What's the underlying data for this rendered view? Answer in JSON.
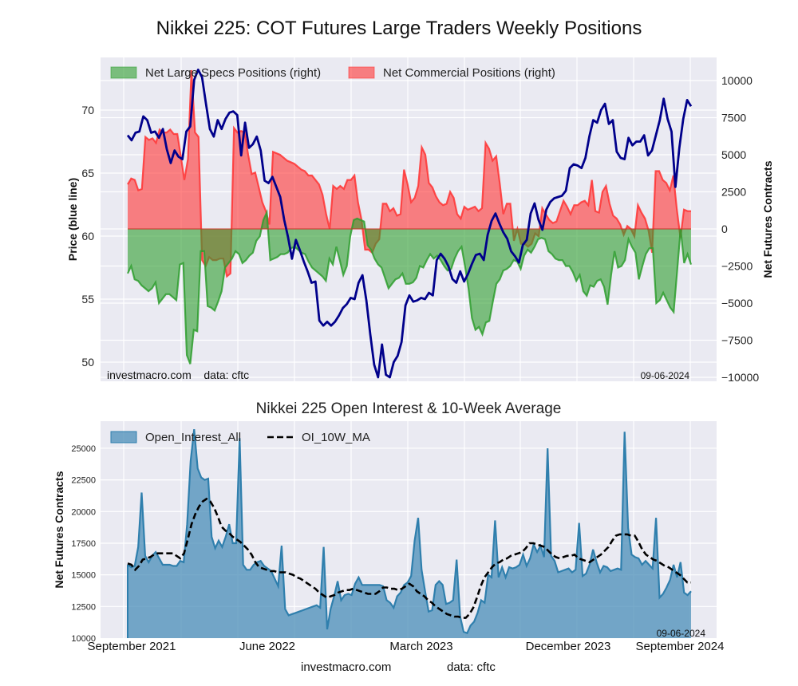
{
  "figure": {
    "title": "Nikkei 225: COT Futures Large Traders Weekly Positions",
    "footer_site": "investmacro.com",
    "footer_data": "data: cftc"
  },
  "colors": {
    "price_line": "#00008b",
    "specs_fill": "#2e9e2e",
    "commercial_fill": "#ff3333",
    "oi_fill": "#4a8db8",
    "oi_line": "#2f7fad",
    "ma_line": "#000000",
    "plot_bg": "#eaeaf2"
  },
  "chart_data": [
    {
      "type": "area",
      "title": "Nikkei 225: COT Futures Large Traders Weekly Positions",
      "ylabel_left": "Price (blue line)",
      "ylabel_right": "Net Futures Contracts",
      "ylim_left": [
        49,
        73.5
      ],
      "ylim_right": [
        -10000,
        11000
      ],
      "yticks_left": [
        "50",
        "55",
        "60",
        "65",
        "70"
      ],
      "yticks_right": [
        "10000",
        "7500",
        "5000",
        "2500",
        "0",
        "−2500",
        "−5000",
        "−7500",
        "−10000"
      ],
      "legend": [
        "Net Large Specs Positions (right)",
        "Net Commercial Positions (right)"
      ],
      "legend_position": "top-left",
      "watermark_left": "investmacro.com    data: cftc",
      "watermark_right": "09-06-2024",
      "grid": true,
      "x_start": "2021-08",
      "x_end": "2024-09-03",
      "series": [
        {
          "name": "Price",
          "axis": "left",
          "style": "line",
          "values": [
            68.0,
            67.6,
            68.2,
            68.3,
            69.5,
            69.2,
            68.2,
            68.3,
            67.8,
            68.5,
            66.9,
            65.8,
            66.8,
            66.3,
            66.1,
            68.3,
            68.7,
            72.4,
            73.2,
            72.6,
            70.5,
            68.5,
            67.9,
            69.2,
            68.5,
            69.3,
            69.8,
            69.9,
            69.6,
            66.4,
            69.0,
            67.0,
            67.3,
            67.9,
            66.8,
            64.4,
            64.2,
            64.7,
            63.9,
            63.1,
            61.3,
            59.9,
            58.2,
            59.7,
            58.9,
            58.0,
            57.2,
            56.3,
            56.4,
            53.3,
            52.9,
            53.2,
            52.9,
            53.2,
            53.7,
            54.3,
            54.6,
            55.1,
            55.0,
            56.3,
            56.9,
            54.9,
            52.2,
            49.8,
            48.8,
            51.4,
            49.0,
            48.8,
            50.0,
            50.5,
            51.6,
            54.5,
            55.3,
            54.8,
            54.9,
            55.1,
            55.0,
            55.5,
            55.3,
            58.1,
            58.6,
            58.2,
            57.6,
            56.6,
            56.3,
            57.2,
            56.4,
            57.0,
            57.8,
            58.5,
            58.6,
            58.1,
            60.1,
            61.2,
            61.8,
            61.0,
            60.3,
            59.8,
            58.8,
            58.4,
            57.9,
            59.3,
            59.7,
            61.8,
            62.6,
            61.3,
            60.5,
            62.1,
            62.7,
            63.0,
            63.1,
            63.2,
            63.6,
            65.4,
            65.7,
            65.6,
            65.4,
            66.2,
            67.9,
            69.2,
            69.0,
            70.0,
            70.5,
            68.9,
            69.2,
            66.7,
            66.2,
            66.1,
            67.8,
            67.2,
            67.5,
            67.5,
            68.0,
            66.4,
            66.8,
            68.0,
            69.2,
            70.9,
            69.3,
            68.3,
            63.9,
            67.0,
            69.3,
            70.8,
            70.3
          ]
        },
        {
          "name": "Net Large Specs Positions (right)",
          "axis": "right",
          "style": "area",
          "values": [
            -3000,
            -2500,
            -3400,
            -3500,
            -3800,
            -4000,
            -4200,
            -4000,
            -3600,
            -5000,
            -4700,
            -4400,
            -4400,
            -4600,
            -4800,
            -2400,
            -2300,
            -8500,
            -9100,
            -6800,
            -6900,
            -1500,
            -1500,
            -5200,
            -5300,
            -5500,
            -4900,
            -4200,
            -2600,
            -2300,
            -2000,
            -1500,
            -1700,
            -2300,
            -2100,
            -1800,
            -1600,
            -800,
            -500,
            600,
            1100,
            -2100,
            -2000,
            -1900,
            -1700,
            -1700,
            -1600,
            -1300,
            -1200,
            -1400,
            -1600,
            -1700,
            -2200,
            -2600,
            -2800,
            -3000,
            -3200,
            -3500,
            -2000,
            -2400,
            -1200,
            -2100,
            -3100,
            -2500,
            -500,
            600,
            700,
            600,
            500,
            -1100,
            -1400,
            -2000,
            -2400,
            -2600,
            -3300,
            -4000,
            -3700,
            -3400,
            -3300,
            -3000,
            -3700,
            -3700,
            -3600,
            -3300,
            -2500,
            -2600,
            -2100,
            -1700,
            -2000,
            -1800,
            -2100,
            -2500,
            -2800,
            -2700,
            -2000,
            -1500,
            -1200,
            -2500,
            -4000,
            -6000,
            -6800,
            -6600,
            -7100,
            -6300,
            -6200,
            -4900,
            -3700,
            -3400,
            -2800,
            -2700,
            -2500,
            -2100,
            -2200,
            -2700,
            -1800,
            -1400,
            -1600,
            -1200,
            -700,
            -600,
            -700,
            -1500,
            -1700,
            -2000,
            -2100,
            -2100,
            -2500,
            -2500,
            -2900,
            -3500,
            -3100,
            -4200,
            -4500,
            -3800,
            -3900,
            -3500,
            -3400,
            -3900,
            -5100,
            -3100,
            -1500,
            -2600,
            -2500,
            -2100,
            -700,
            -1200,
            -1600,
            -3400,
            -2500,
            -1700,
            -1300,
            -1300,
            -5000,
            -4800,
            -4300,
            -4800,
            -5300,
            -5600,
            -2800,
            0,
            -2300,
            -1700,
            -2400
          ]
        },
        {
          "name": "Net Commercial Positions (right)",
          "axis": "right",
          "style": "area",
          "values": [
            3000,
            3400,
            3300,
            2600,
            2700,
            6200,
            6000,
            6100,
            5800,
            6700,
            6500,
            6500,
            6700,
            6400,
            6400,
            4900,
            3300,
            4700,
            10700,
            6500,
            6200,
            -2100,
            -2500,
            -1900,
            -2100,
            -2100,
            -2000,
            -2000,
            -3200,
            -3000,
            6800,
            6500,
            6600,
            6500,
            5000,
            3700,
            3800,
            2800,
            1800,
            1200,
            300,
            5200,
            5100,
            5000,
            4800,
            4600,
            4500,
            4400,
            4200,
            4000,
            3900,
            3600,
            3600,
            3300,
            3000,
            2300,
            1000,
            0,
            2900,
            2700,
            2900,
            2700,
            3300,
            3300,
            3600,
            1800,
            600,
            -1400,
            -1400,
            -1600,
            -1000,
            -700,
            1700,
            1700,
            1200,
            1400,
            900,
            1000,
            4000,
            3000,
            1800,
            2100,
            2900,
            5500,
            5000,
            3100,
            2800,
            2200,
            1800,
            1600,
            1700,
            2500,
            2100,
            1000,
            700,
            1500,
            1300,
            1400,
            1500,
            1200,
            1400,
            5800,
            5400,
            4600,
            4900,
            3100,
            1000,
            1700,
            1700,
            -800,
            0,
            -1000,
            -1000,
            -1200,
            -1000,
            -300,
            -500,
            1400,
            1000,
            600,
            400,
            500,
            1200,
            1900,
            1500,
            1000,
            1600,
            1600,
            1800,
            1900,
            1600,
            3300,
            1200,
            1100,
            2500,
            2900,
            1700,
            900,
            700,
            300,
            -400,
            200,
            0,
            -500,
            1600,
            1100,
            700,
            -100,
            -1600,
            3900,
            3900,
            3300,
            3100,
            2600,
            3600,
            1300,
            -600,
            1300,
            1200,
            1200
          ]
        }
      ],
      "xticks": [
        "September 2021",
        "June 2022",
        "March 2023",
        "December 2023",
        "September 2024"
      ]
    },
    {
      "type": "area",
      "title": "Nikkei 225 Open Interest & 10-Week Average",
      "ylabel": "Net Futures Contracts",
      "ylim": [
        10000,
        27000
      ],
      "yticks": [
        "25000",
        "22500",
        "20000",
        "17500",
        "15000",
        "12500",
        "10000"
      ],
      "xticks": [
        "September 2021",
        "June 2022",
        "March 2023",
        "December 2023",
        "September 2024"
      ],
      "legend": [
        "Open_Interest_All",
        "OI_10W_MA"
      ],
      "legend_position": "top-left",
      "watermark_right": "09-06-2024",
      "grid": true,
      "series": [
        {
          "name": "Open_Interest_All",
          "style": "area",
          "values": [
            15800,
            15600,
            15700,
            17200,
            21500,
            16500,
            16000,
            16500,
            16800,
            16300,
            15800,
            15800,
            15800,
            15700,
            15700,
            16100,
            16000,
            19000,
            24000,
            26500,
            23400,
            22700,
            22500,
            22600,
            18000,
            17100,
            17700,
            17200,
            18000,
            19000,
            17500,
            17500,
            25800,
            15800,
            15400,
            15400,
            15800,
            16000,
            16100,
            15700,
            15500,
            15300,
            14700,
            14100,
            17300,
            12300,
            11800,
            11900,
            12000,
            12100,
            12200,
            12300,
            12400,
            12500,
            12600,
            12400,
            17200,
            10700,
            12300,
            13300,
            14500,
            13000,
            13400,
            13500,
            13400,
            14300,
            14800,
            14200,
            14200,
            14200,
            14200,
            14200,
            14200,
            14100,
            13000,
            12800,
            12400,
            13300,
            13600,
            14200,
            14400,
            14900,
            17700,
            19500,
            15400,
            13700,
            12100,
            12200,
            14200,
            14500,
            14200,
            12700,
            12800,
            13000,
            16200,
            11700,
            10500,
            10400,
            11000,
            11300,
            12000,
            13000,
            12800,
            15000,
            14800,
            19300,
            14800,
            15600,
            14800,
            15600,
            15500,
            15600,
            15800,
            16600,
            15700,
            16300,
            17400,
            16800,
            17300,
            16400,
            25000,
            16500,
            16100,
            15200,
            15300,
            15400,
            15500,
            15200,
            15400,
            19100,
            14900,
            15100,
            15800,
            17000,
            16000,
            15200,
            15700,
            15600,
            15300,
            15400,
            15500,
            15400,
            26300,
            18700,
            16600,
            16400,
            16300,
            15800,
            16100,
            15800,
            15500,
            19500,
            13200,
            13500,
            14000,
            14600,
            15800,
            14800,
            16000,
            13600,
            13400,
            13700
          ]
        },
        {
          "name": "OI_10W_MA",
          "style": "dashed-line",
          "values": [
            15900,
            15800,
            15400,
            15700,
            16200,
            16300,
            16400,
            16600,
            16700,
            16700,
            16700,
            16700,
            16700,
            16500,
            16300,
            16700,
            17800,
            19000,
            19800,
            20400,
            20800,
            21000,
            20800,
            20300,
            19600,
            18800,
            18500,
            18300,
            18000,
            17800,
            17600,
            17300,
            17000,
            16600,
            16000,
            15600,
            15500,
            15400,
            15300,
            15300,
            15200,
            15200,
            15200,
            15100,
            15000,
            14800,
            14700,
            14500,
            14300,
            14100,
            13900,
            13600,
            13400,
            13200,
            13300,
            13400,
            13600,
            13700,
            13800,
            13800,
            13900,
            13800,
            13700,
            13600,
            13500,
            13500,
            13500,
            13700,
            14000,
            14000,
            13900,
            13900,
            13800,
            13900,
            14100,
            14300,
            14100,
            13700,
            13500,
            13300,
            13000,
            12800,
            12500,
            12300,
            12100,
            11900,
            11800,
            11700,
            11700,
            11600,
            11600,
            11900,
            12400,
            13200,
            14100,
            14800,
            15200,
            15600,
            15900,
            16000,
            16200,
            16300,
            16500,
            16600,
            16700,
            16800,
            17100,
            17500,
            17500,
            17400,
            17300,
            17200,
            16900,
            16600,
            16400,
            16300,
            16400,
            16500,
            16500,
            16600,
            16300,
            16200,
            16100,
            16000,
            16200,
            16400,
            16600,
            16900,
            17200,
            17700,
            18100,
            18200,
            18200,
            18200,
            18100,
            18100,
            17600,
            17000,
            16600,
            16400,
            16200,
            16100,
            15900,
            15700,
            15600,
            15400,
            15200,
            15000,
            14700,
            14400,
            14400
          ]
        }
      ]
    }
  ]
}
